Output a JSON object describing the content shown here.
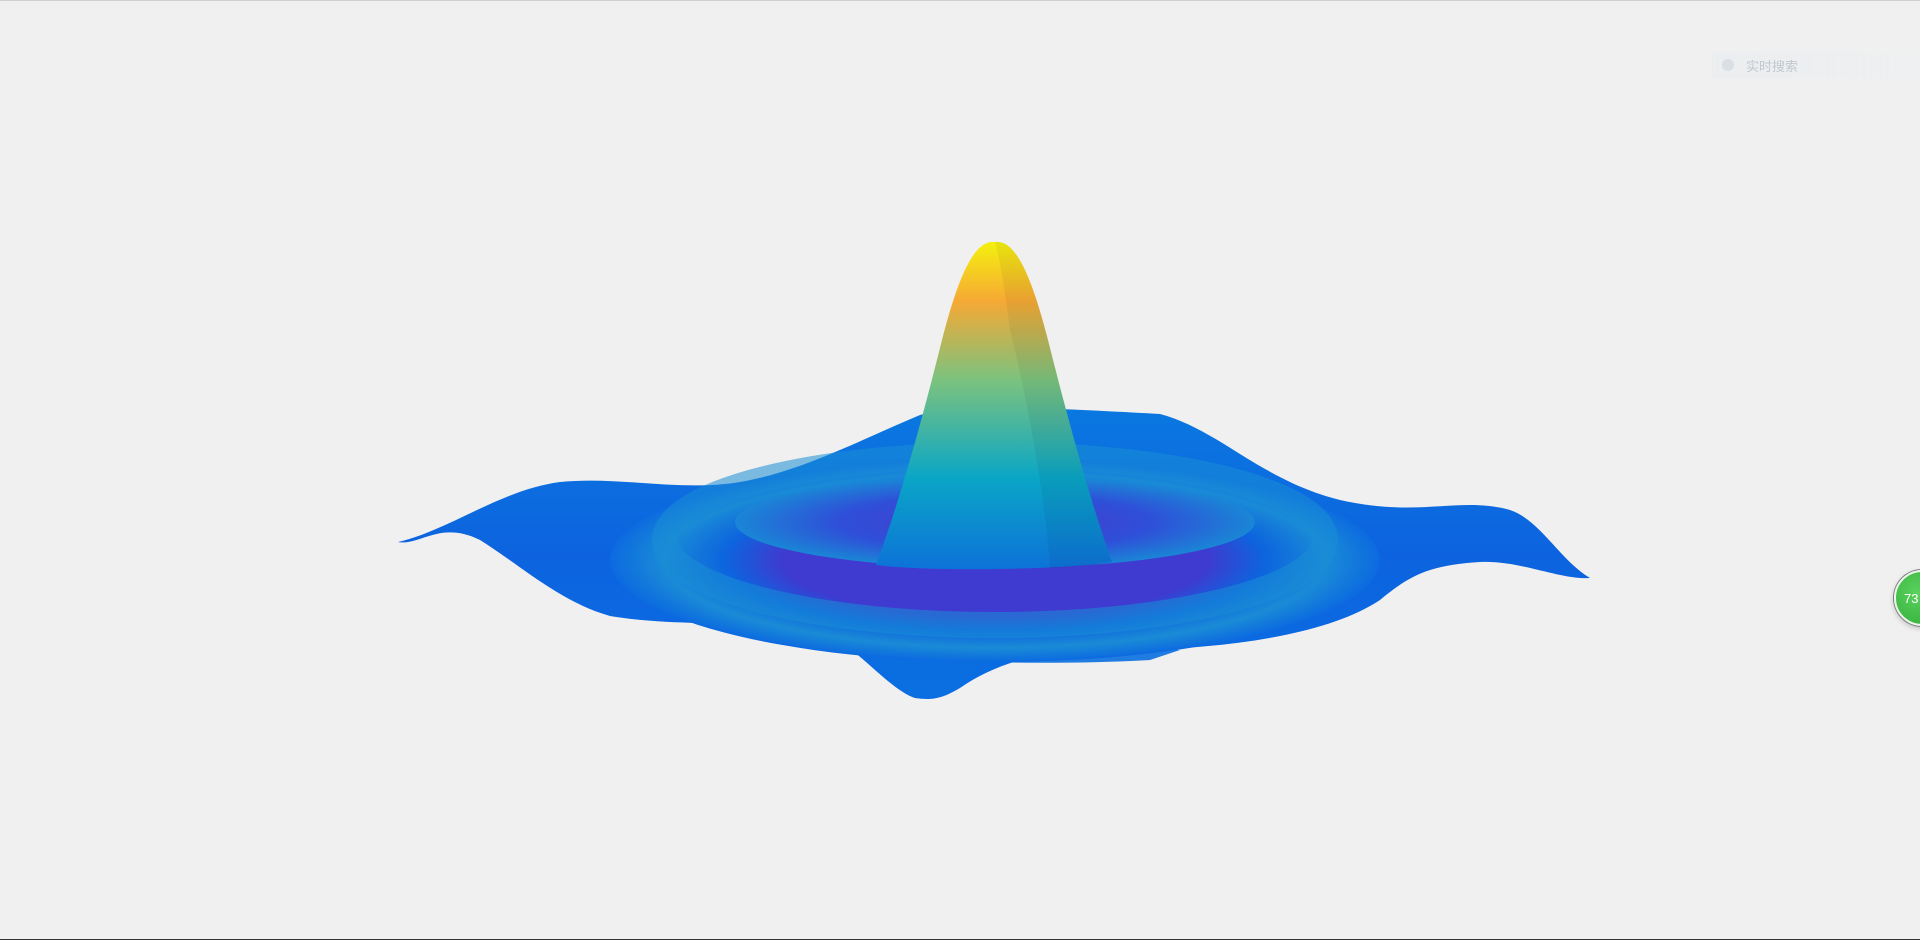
{
  "search": {
    "placeholder": "实时搜索"
  },
  "badge": {
    "value": "73"
  },
  "colors": {
    "background": "#f0f0f0",
    "surface_low": "#2a3fcf",
    "surface_mid": "#0a78e0",
    "surface_cyan": "#0aa6c6",
    "surface_green": "#6cc18a",
    "surface_orange": "#f6a934",
    "surface_peak": "#f4f10e"
  },
  "icons": [
    "search-icon"
  ]
}
